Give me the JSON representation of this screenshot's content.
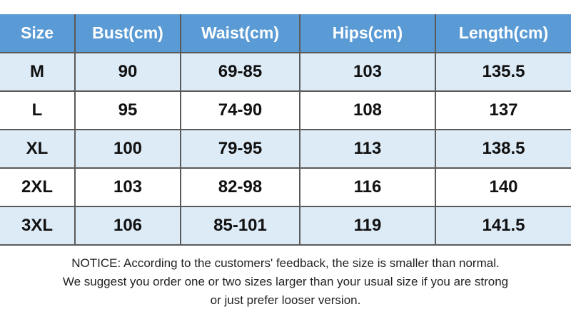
{
  "table": {
    "header": [
      "Size",
      "Bust(cm)",
      "Waist(cm)",
      "Hips(cm)",
      "Length(cm)"
    ],
    "rows": [
      [
        "M",
        "90",
        "69-85",
        "103",
        "135.5"
      ],
      [
        "L",
        "95",
        "74-90",
        "108",
        "137"
      ],
      [
        "XL",
        "100",
        "79-95",
        "113",
        "138.5"
      ],
      [
        "2XL",
        "103",
        "82-98",
        "116",
        "140"
      ],
      [
        "3XL",
        "106",
        "85-101",
        "119",
        "141.5"
      ]
    ]
  },
  "notice": {
    "lines": [
      "NOTICE: According to the customers' feedback, the size is smaller than normal.",
      "We suggest you order one or two sizes larger than your usual size if you are strong",
      "or just prefer looser version."
    ]
  }
}
